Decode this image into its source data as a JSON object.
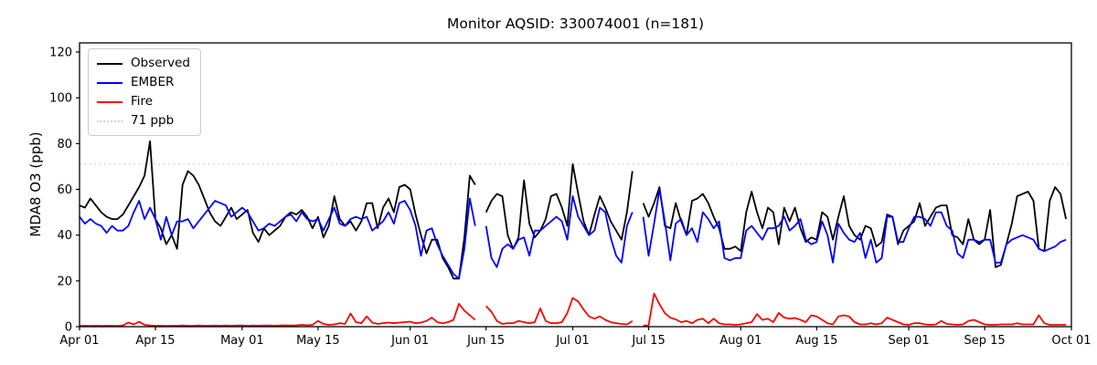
{
  "figure": {
    "title": "Monitor AQSID: 330074001 (n=181)",
    "background_color": "#ffffff"
  },
  "axes": {
    "ylabel": "MDA8 O3 (ppb)",
    "ylim": [
      0,
      124
    ],
    "yticks": [
      0,
      20,
      40,
      60,
      80,
      100,
      120
    ],
    "xtick_days": [
      0,
      14,
      30,
      44,
      61,
      75,
      91,
      105,
      122,
      136,
      153,
      167,
      183
    ],
    "xtick_labels": [
      "Apr 01",
      "Apr 15",
      "May 01",
      "May 15",
      "Jun 01",
      "Jun 15",
      "Jul 01",
      "Jul 15",
      "Aug 01",
      "Aug 15",
      "Sep 01",
      "Sep 15",
      "Oct 01"
    ],
    "x_total_days": 183,
    "frame_color": "#000000",
    "grid": "off"
  },
  "legend": {
    "position": "upper-left",
    "entries": [
      {
        "label": "Observed",
        "color": "#000000",
        "style": "solid"
      },
      {
        "label": "EMBER",
        "color": "#0000ff",
        "style": "solid"
      },
      {
        "label": "Fire",
        "color": "#ff0000",
        "style": "solid"
      },
      {
        "label": "71 ppb",
        "color": "#d3d3d3",
        "style": "dotted"
      }
    ]
  },
  "chart_data": {
    "type": "line",
    "title": "Monitor AQSID: 330074001 (n=181)",
    "xlabel": "",
    "ylabel": "MDA8 O3 (ppb)",
    "ylim": [
      0,
      124
    ],
    "x_frequency": "daily",
    "x_start_label": "Apr 01",
    "x_end_label": "Oct 01",
    "n_points": 181,
    "threshold_ppb": 71,
    "threshold_color": "#d3d3d3",
    "missing_dates": [
      "Jun 14",
      "Jul 13"
    ],
    "series": [
      {
        "name": "Observed",
        "color": "#000000",
        "values": [
          53,
          52,
          56,
          53,
          50,
          48,
          47,
          47,
          49,
          53,
          57,
          61,
          66,
          81,
          47,
          43,
          36,
          40,
          34,
          62,
          68,
          66,
          62,
          56,
          50,
          46,
          44,
          48,
          52,
          47,
          49,
          51,
          41,
          37,
          43,
          40,
          42,
          44,
          48,
          50,
          49,
          51,
          48,
          43,
          48,
          39,
          44,
          57,
          47,
          44,
          46,
          42,
          46,
          54,
          54,
          43,
          52,
          56,
          50,
          61,
          62,
          60,
          49,
          40,
          32,
          38,
          38,
          30,
          26,
          21,
          21,
          39,
          66,
          62,
          null,
          50,
          55,
          58,
          57,
          40,
          34,
          39,
          64,
          45,
          39,
          42,
          47,
          57,
          58,
          52,
          44,
          71,
          58,
          46,
          40,
          49,
          57,
          52,
          46,
          42,
          38,
          50,
          68,
          null,
          54,
          48,
          54,
          61,
          44,
          43,
          54,
          46,
          40,
          55,
          56,
          58,
          54,
          48,
          43,
          34,
          34,
          35,
          33,
          50,
          59,
          50,
          43,
          52,
          50,
          36,
          52,
          46,
          52,
          43,
          37,
          39,
          38,
          50,
          48,
          38,
          48,
          57,
          44,
          40,
          38,
          44,
          43,
          35,
          37,
          49,
          48,
          36,
          42,
          44,
          46,
          54,
          44,
          48,
          52,
          53,
          53,
          40,
          39,
          36,
          47,
          38,
          36,
          38,
          51,
          26,
          27,
          36,
          45,
          57,
          58,
          59,
          55,
          34,
          33,
          55,
          61,
          58,
          47
        ]
      },
      {
        "name": "EMBER",
        "color": "#0000ff",
        "values": [
          48,
          45,
          47,
          45,
          44,
          41,
          44,
          42,
          42,
          44,
          50,
          55,
          47,
          52,
          47,
          38,
          48,
          40,
          46,
          46,
          47,
          43,
          46,
          49,
          52,
          55,
          54,
          53,
          48,
          50,
          52,
          50,
          46,
          42,
          43,
          45,
          44,
          46,
          48,
          49,
          46,
          50,
          47,
          46,
          47,
          42,
          47,
          52,
          45,
          44,
          47,
          48,
          47,
          48,
          42,
          44,
          46,
          50,
          45,
          54,
          55,
          51,
          44,
          31,
          42,
          43,
          36,
          31,
          27,
          23,
          21,
          34,
          56,
          44,
          null,
          44,
          30,
          26,
          34,
          36,
          34,
          38,
          39,
          31,
          42,
          42,
          44,
          46,
          48,
          46,
          38,
          57,
          48,
          44,
          40,
          42,
          52,
          50,
          39,
          31,
          28,
          44,
          50,
          null,
          48,
          31,
          45,
          60,
          46,
          29,
          45,
          47,
          40,
          43,
          37,
          50,
          47,
          43,
          46,
          30,
          29,
          30,
          30,
          42,
          44,
          41,
          38,
          43,
          43,
          44,
          48,
          42,
          44,
          47,
          38,
          36,
          37,
          46,
          40,
          28,
          45,
          41,
          38,
          37,
          41,
          30,
          38,
          28,
          30,
          48,
          48,
          37,
          37,
          43,
          48,
          48,
          47,
          44,
          50,
          50,
          44,
          42,
          32,
          30,
          38,
          38,
          37,
          38,
          38,
          28,
          28,
          36,
          38,
          39,
          40,
          39,
          38,
          34,
          33,
          34,
          35,
          37,
          38
        ]
      },
      {
        "name": "Fire",
        "color": "#ff0000",
        "values": [
          0.4,
          0.4,
          0.3,
          0.4,
          0.3,
          0.4,
          0.4,
          0.3,
          0.5,
          1.8,
          1.0,
          2.2,
          0.8,
          0.5,
          0.4,
          0.4,
          0.3,
          0.4,
          0.4,
          0.5,
          0.4,
          0.4,
          0.5,
          0.4,
          0.4,
          0.5,
          0.4,
          0.5,
          0.4,
          0.5,
          0.5,
          0.4,
          0.5,
          0.4,
          0.5,
          0.5,
          0.4,
          0.5,
          0.6,
          0.5,
          0.6,
          0.8,
          0.6,
          0.8,
          2.5,
          1.2,
          0.8,
          1.0,
          1.5,
          1.2,
          5.8,
          2.0,
          1.5,
          4.5,
          1.8,
          1.2,
          1.5,
          1.8,
          1.5,
          1.8,
          2.0,
          2.2,
          1.5,
          1.8,
          2.5,
          4.0,
          2.0,
          1.5,
          2.0,
          3.0,
          10.0,
          7.0,
          5.0,
          3.0,
          null,
          9.0,
          6.5,
          2.5,
          1.2,
          1.5,
          1.5,
          2.5,
          2.0,
          1.5,
          2.0,
          8.0,
          2.5,
          1.5,
          1.5,
          2.0,
          6.0,
          12.5,
          11.0,
          7.5,
          4.5,
          3.5,
          4.5,
          3.0,
          2.0,
          1.5,
          1.2,
          1.0,
          2.5,
          null,
          0.5,
          0.6,
          14.5,
          9.8,
          5.9,
          3.9,
          3.2,
          2.0,
          2.5,
          1.5,
          3.0,
          3.5,
          1.5,
          3.5,
          1.5,
          1.0,
          1.0,
          0.8,
          1.0,
          1.5,
          2.0,
          5.5,
          3.0,
          3.5,
          2.0,
          6.0,
          4.0,
          3.5,
          3.8,
          3.0,
          2.0,
          5.0,
          4.5,
          3.0,
          1.5,
          1.0,
          4.5,
          5.0,
          4.5,
          2.0,
          1.0,
          1.0,
          1.5,
          1.0,
          1.5,
          4.0,
          3.0,
          2.0,
          1.0,
          0.8,
          1.5,
          1.5,
          1.0,
          0.8,
          1.0,
          2.5,
          1.2,
          1.0,
          0.8,
          1.0,
          2.5,
          3.0,
          2.0,
          1.0,
          0.8,
          0.8,
          1.0,
          1.0,
          1.0,
          1.5,
          1.0,
          1.0,
          1.0,
          5.0,
          1.5,
          0.8,
          0.8,
          0.8,
          0.8
        ]
      }
    ]
  }
}
